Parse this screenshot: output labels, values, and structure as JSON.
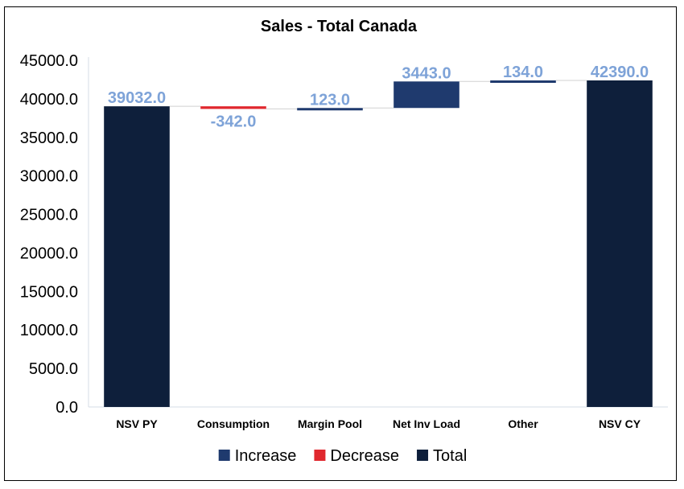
{
  "chart_data": {
    "type": "bar",
    "subtype": "waterfall",
    "title": "Sales - Total Canada",
    "xlabel": "",
    "ylabel": "",
    "ylim": [
      0,
      45000
    ],
    "yticks": [
      "0.0",
      "5000.0",
      "10000.0",
      "15000.0",
      "20000.0",
      "25000.0",
      "30000.0",
      "35000.0",
      "40000.0",
      "45000.0"
    ],
    "categories": [
      "NSV PY",
      "Consumption",
      "Margin Pool",
      "Net Inv Load",
      "Other",
      "NSV CY"
    ],
    "values": [
      39032.0,
      -342.0,
      123.0,
      3443.0,
      134.0,
      42390.0
    ],
    "data_labels": [
      "39032.0",
      "-342.0",
      "123.0",
      "3443.0",
      "134.0",
      "42390.0"
    ],
    "kinds": [
      "total",
      "decrease",
      "increase",
      "increase",
      "increase",
      "total"
    ],
    "grid": false,
    "legend_position": "bottom",
    "legend": [
      {
        "name": "Increase",
        "color": "#1f3a6e"
      },
      {
        "name": "Decrease",
        "color": "#e0282e"
      },
      {
        "name": "Total",
        "color": "#0e1f3b"
      }
    ],
    "label_color": "#7ea3d8"
  }
}
